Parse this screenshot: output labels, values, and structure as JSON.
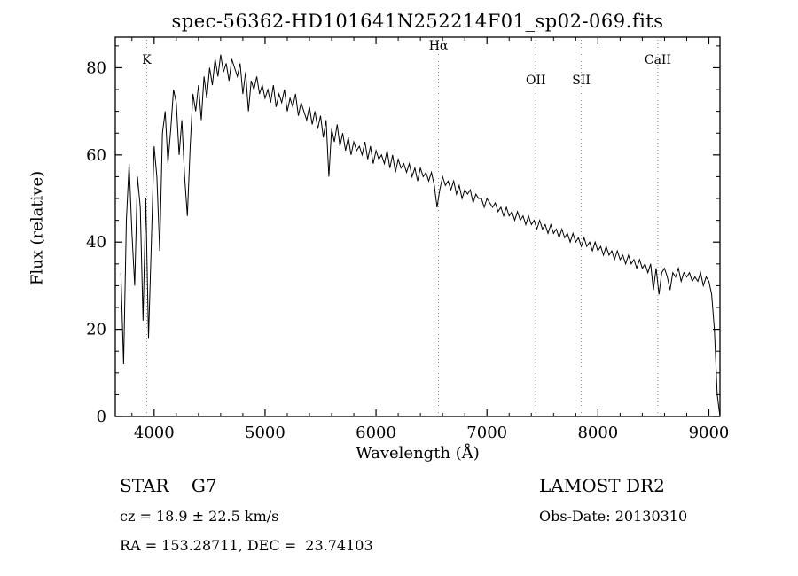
{
  "chart_data": {
    "type": "line",
    "title": "spec-56362-HD101641N252214F01_sp02-069.fits",
    "xlabel": "Wavelength (Å)",
    "ylabel": "Flux (relative)",
    "xlim": [
      3650,
      9100
    ],
    "ylim": [
      0,
      87
    ],
    "xticks": [
      4000,
      5000,
      6000,
      7000,
      8000,
      9000
    ],
    "yticks": [
      0,
      20,
      40,
      60,
      80
    ],
    "x_minor_step": 200,
    "y_minor_step": 5,
    "line_color": "#000000",
    "gridline_color": "#8a8a8a",
    "x_start": 3700,
    "x_step": 25,
    "flux": [
      33,
      12,
      45,
      58,
      42,
      30,
      55,
      48,
      22,
      50,
      18,
      40,
      62,
      55,
      38,
      65,
      70,
      58,
      66,
      75,
      72,
      60,
      68,
      55,
      46,
      62,
      74,
      70,
      76,
      68,
      78,
      73,
      80,
      76,
      82,
      78,
      83,
      79,
      81,
      77,
      82,
      80,
      78,
      81,
      74,
      79,
      70,
      77,
      75,
      78,
      74,
      76,
      73,
      75,
      72,
      76,
      71,
      74,
      72,
      75,
      70,
      73,
      71,
      74,
      69,
      72,
      70,
      68,
      71,
      67,
      70,
      66,
      69,
      64,
      68,
      55,
      66,
      63,
      67,
      62,
      65,
      61,
      64,
      60,
      63,
      61,
      62,
      60,
      63,
      59,
      62,
      58,
      61,
      59,
      60,
      58,
      61,
      57,
      60,
      56,
      59,
      57,
      58,
      56,
      58,
      55,
      57,
      54,
      57,
      55,
      56,
      54,
      56,
      53,
      48,
      52,
      55,
      53,
      54,
      52,
      54,
      51,
      53,
      50,
      52,
      51,
      52,
      49,
      51,
      50,
      50,
      48,
      50,
      49,
      48,
      49,
      47,
      48,
      46,
      48,
      46,
      47,
      45,
      47,
      45,
      46,
      44,
      46,
      44,
      45,
      43,
      45,
      43,
      44,
      42,
      44,
      42,
      43,
      41,
      43,
      41,
      42,
      40,
      42,
      40,
      41,
      39,
      41,
      39,
      40,
      38,
      40,
      38,
      39,
      37,
      39,
      37,
      38,
      36,
      38,
      36,
      37,
      35,
      37,
      35,
      36,
      34,
      36,
      34,
      35,
      33,
      35,
      29,
      34,
      28,
      33,
      34,
      32,
      29,
      33,
      32,
      34,
      31,
      33,
      32,
      33,
      31,
      32,
      31,
      33,
      30,
      32,
      31,
      28,
      20,
      5,
      0
    ],
    "features": [
      {
        "label": "K",
        "wavelength": 3933,
        "row": "mid"
      },
      {
        "label": "Hα",
        "wavelength": 6563,
        "row": "high"
      },
      {
        "label": "OII",
        "wavelength": 7440,
        "row": "low"
      },
      {
        "label": "SII",
        "wavelength": 7850,
        "row": "low"
      },
      {
        "label": "CaII",
        "wavelength": 8540,
        "row": "mid"
      }
    ]
  },
  "footer": {
    "class_line": "STAR    G7",
    "cz_line": "cz = 18.9 ± 22.5 km/s",
    "radec_line": "RA = 153.28711, DEC =  23.74103",
    "survey": "LAMOST DR2",
    "obsdate": "Obs-Date: 20130310"
  }
}
